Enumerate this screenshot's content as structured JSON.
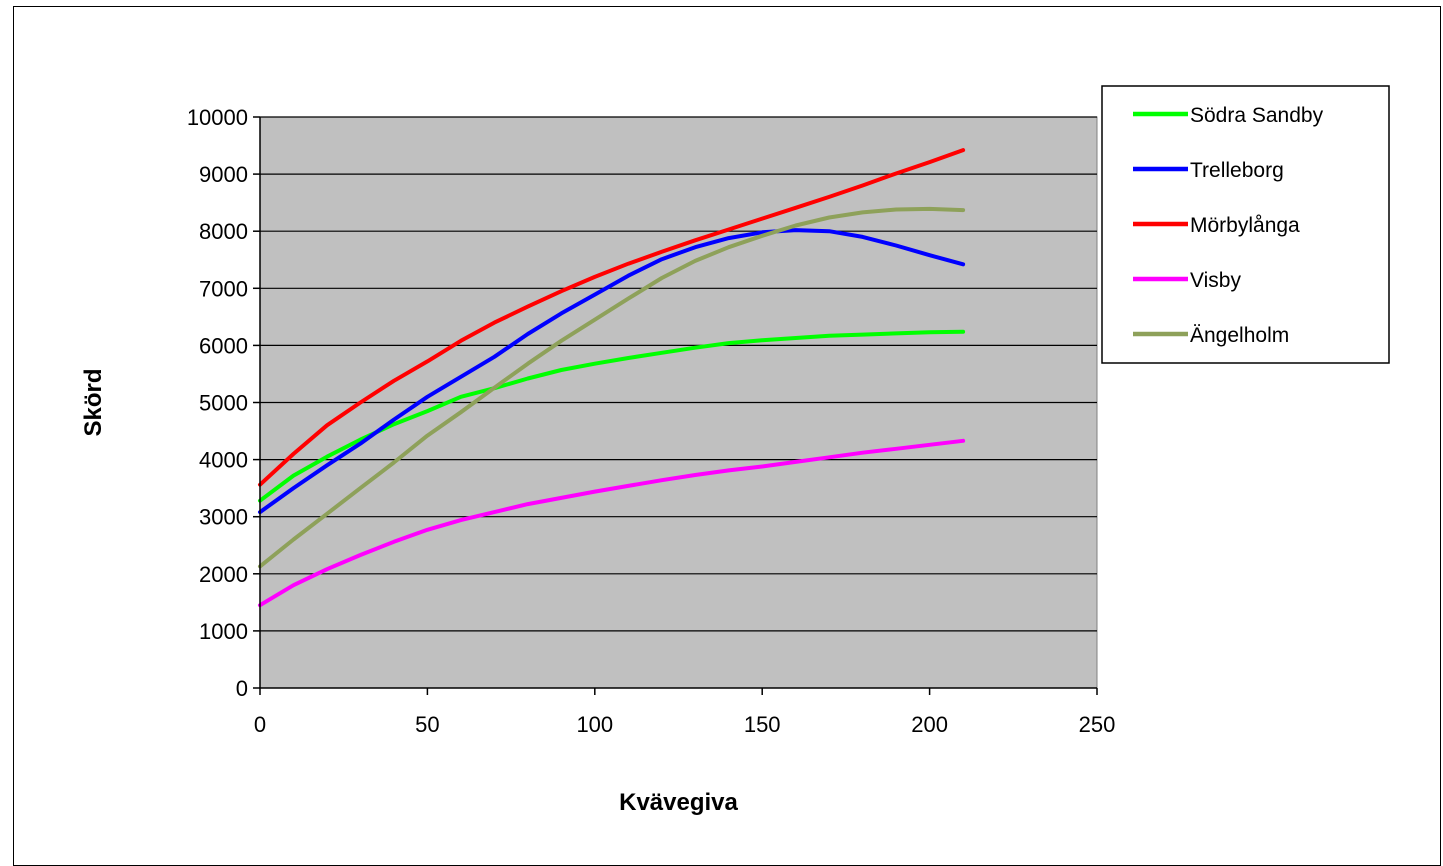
{
  "chart_data": {
    "type": "line",
    "title": "",
    "xlabel": "Kvävegiva",
    "ylabel": "Skörd",
    "xlim": [
      0,
      250
    ],
    "ylim": [
      0,
      10000
    ],
    "xticks": [
      0,
      50,
      100,
      150,
      200,
      250
    ],
    "yticks": [
      0,
      1000,
      2000,
      3000,
      4000,
      5000,
      6000,
      7000,
      8000,
      9000,
      10000
    ],
    "grid": "horizontal",
    "plot_background": "#c0c0c0",
    "legend_position": "right",
    "x": [
      0,
      10,
      20,
      30,
      40,
      50,
      60,
      70,
      80,
      90,
      100,
      110,
      120,
      130,
      140,
      150,
      160,
      170,
      180,
      190,
      200,
      210
    ],
    "series": [
      {
        "name": "Södra Sandby",
        "color": "#00ff00",
        "values": [
          3280,
          3720,
          4050,
          4350,
          4620,
          4850,
          5100,
          5250,
          5420,
          5570,
          5680,
          5780,
          5870,
          5960,
          6040,
          6090,
          6130,
          6170,
          6190,
          6210,
          6230,
          6240
        ]
      },
      {
        "name": "Trelleborg",
        "color": "#0000ff",
        "values": [
          3080,
          3500,
          3900,
          4280,
          4700,
          5100,
          5450,
          5800,
          6200,
          6560,
          6890,
          7220,
          7510,
          7720,
          7880,
          7980,
          8020,
          8000,
          7900,
          7750,
          7580,
          7420
        ]
      },
      {
        "name": "Mörbylånga",
        "color": "#ff0000",
        "values": [
          3560,
          4100,
          4600,
          5000,
          5380,
          5720,
          6080,
          6400,
          6680,
          6950,
          7200,
          7430,
          7640,
          7840,
          8030,
          8220,
          8410,
          8600,
          8800,
          9010,
          9210,
          9420
        ]
      },
      {
        "name": "Visby",
        "color": "#ff00ff",
        "values": [
          1450,
          1800,
          2080,
          2330,
          2560,
          2770,
          2940,
          3080,
          3220,
          3330,
          3440,
          3540,
          3640,
          3730,
          3810,
          3880,
          3960,
          4040,
          4120,
          4190,
          4260,
          4330
        ]
      },
      {
        "name": "Ängelholm",
        "color": "#8ea15a",
        "values": [
          2130,
          2600,
          3050,
          3500,
          3950,
          4420,
          4830,
          5260,
          5680,
          6080,
          6450,
          6820,
          7180,
          7480,
          7720,
          7920,
          8100,
          8240,
          8330,
          8380,
          8390,
          8370
        ]
      }
    ]
  }
}
